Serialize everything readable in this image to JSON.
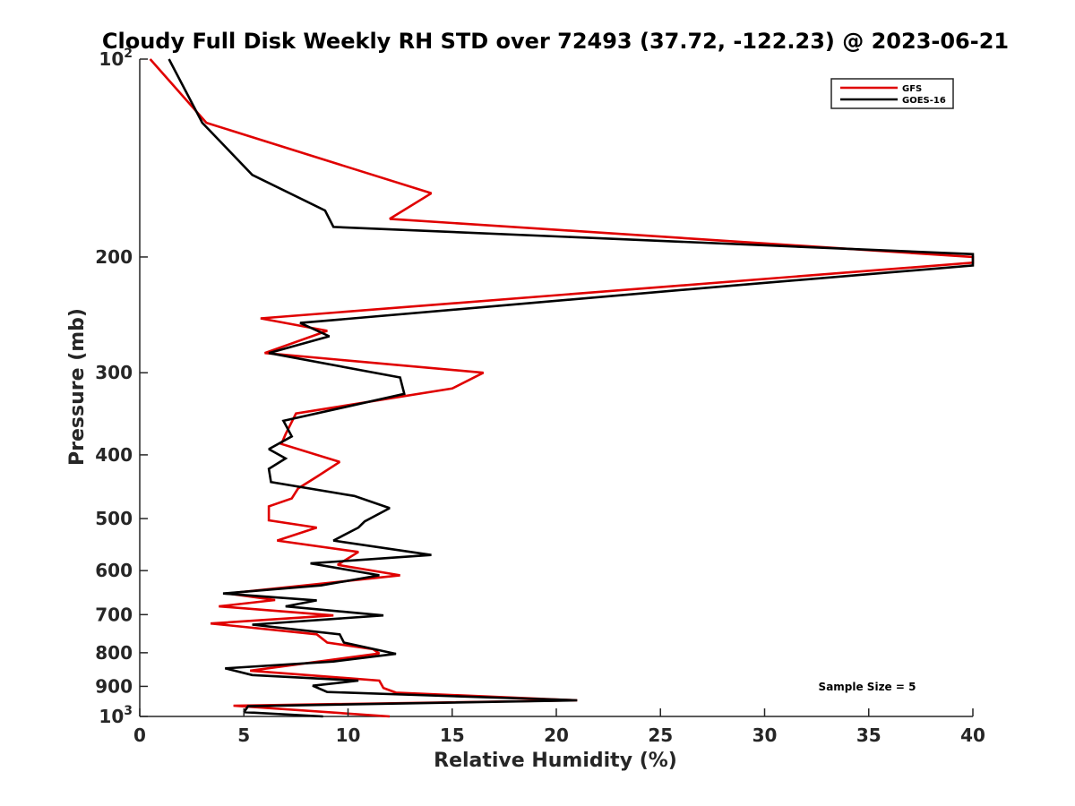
{
  "chart_data": {
    "type": "line",
    "title": "Cloudy Full Disk Weekly RH STD over 72493 (37.72, -122.23) @ 2023-06-21",
    "xlabel": "Relative Humidity (%)",
    "ylabel": "Pressure (mb)",
    "xlim": [
      0,
      40
    ],
    "ylim": [
      100,
      1000
    ],
    "yscale": "log",
    "y_reversed": true,
    "grid": false,
    "legend_position": "top-right",
    "x_ticks": [
      0,
      5,
      10,
      15,
      20,
      25,
      30,
      35,
      40
    ],
    "x_tick_labels": [
      "0",
      "5",
      "10",
      "15",
      "20",
      "25",
      "30",
      "35",
      "40"
    ],
    "y_ticks": [
      100,
      200,
      300,
      400,
      500,
      600,
      700,
      800,
      900,
      1000
    ],
    "y_tick_labels": [
      "10²",
      "200",
      "300",
      "400",
      "500",
      "600",
      "700",
      "800",
      "900",
      "10³"
    ],
    "annotation": "Sample Size = 5",
    "series": [
      {
        "name": "GFS",
        "color": "#e00000",
        "points": [
          [
            0.5,
            100
          ],
          [
            3.2,
            125
          ],
          [
            14.0,
            160
          ],
          [
            12.0,
            175
          ],
          [
            40.0,
            200
          ],
          [
            40.0,
            204
          ],
          [
            5.8,
            248
          ],
          [
            9.0,
            259
          ],
          [
            6.0,
            280
          ],
          [
            16.5,
            300
          ],
          [
            15.0,
            317
          ],
          [
            7.5,
            346
          ],
          [
            7.0,
            372
          ],
          [
            6.8,
            385
          ],
          [
            9.6,
            410
          ],
          [
            8.5,
            432
          ],
          [
            7.6,
            450
          ],
          [
            7.3,
            466
          ],
          [
            6.2,
            479
          ],
          [
            6.2,
            503
          ],
          [
            8.5,
            516
          ],
          [
            6.6,
            540
          ],
          [
            10.5,
            562
          ],
          [
            9.5,
            588
          ],
          [
            12.5,
            610
          ],
          [
            10.0,
            622
          ],
          [
            4.2,
            650
          ],
          [
            6.5,
            665
          ],
          [
            3.8,
            680
          ],
          [
            9.3,
            702
          ],
          [
            3.4,
            722
          ],
          [
            8.5,
            750
          ],
          [
            9.0,
            772
          ],
          [
            11.2,
            790
          ],
          [
            11.5,
            802
          ],
          [
            5.3,
            852
          ],
          [
            11.5,
            882
          ],
          [
            11.7,
            905
          ],
          [
            12.3,
            920
          ],
          [
            21.0,
            945
          ],
          [
            4.5,
            963
          ],
          [
            12.0,
            1000
          ]
        ]
      },
      {
        "name": "GOES-16",
        "color": "#000000",
        "points": [
          [
            1.4,
            100
          ],
          [
            3.0,
            125
          ],
          [
            5.4,
            150
          ],
          [
            8.9,
            170
          ],
          [
            9.3,
            180
          ],
          [
            40.0,
            198
          ],
          [
            40.0,
            206
          ],
          [
            28.5,
            221
          ],
          [
            7.7,
            252
          ],
          [
            9.1,
            264
          ],
          [
            6.2,
            280
          ],
          [
            12.5,
            305
          ],
          [
            12.7,
            323
          ],
          [
            6.9,
            355
          ],
          [
            7.3,
            375
          ],
          [
            6.2,
            392
          ],
          [
            7.0,
            405
          ],
          [
            6.2,
            420
          ],
          [
            6.3,
            440
          ],
          [
            10.3,
            462
          ],
          [
            12.0,
            482
          ],
          [
            10.8,
            505
          ],
          [
            10.5,
            516
          ],
          [
            9.3,
            540
          ],
          [
            14.0,
            568
          ],
          [
            8.2,
            585
          ],
          [
            11.5,
            610
          ],
          [
            8.7,
            632
          ],
          [
            4.0,
            650
          ],
          [
            8.5,
            666
          ],
          [
            7.0,
            680
          ],
          [
            11.7,
            702
          ],
          [
            5.4,
            725
          ],
          [
            9.6,
            750
          ],
          [
            9.8,
            772
          ],
          [
            12.3,
            803
          ],
          [
            9.3,
            825
          ],
          [
            4.1,
            845
          ],
          [
            5.4,
            865
          ],
          [
            10.5,
            882
          ],
          [
            8.3,
            898
          ],
          [
            9.0,
            918
          ],
          [
            21.0,
            945
          ],
          [
            5.2,
            965
          ],
          [
            5.0,
            985
          ],
          [
            8.8,
            1000
          ]
        ]
      }
    ]
  }
}
